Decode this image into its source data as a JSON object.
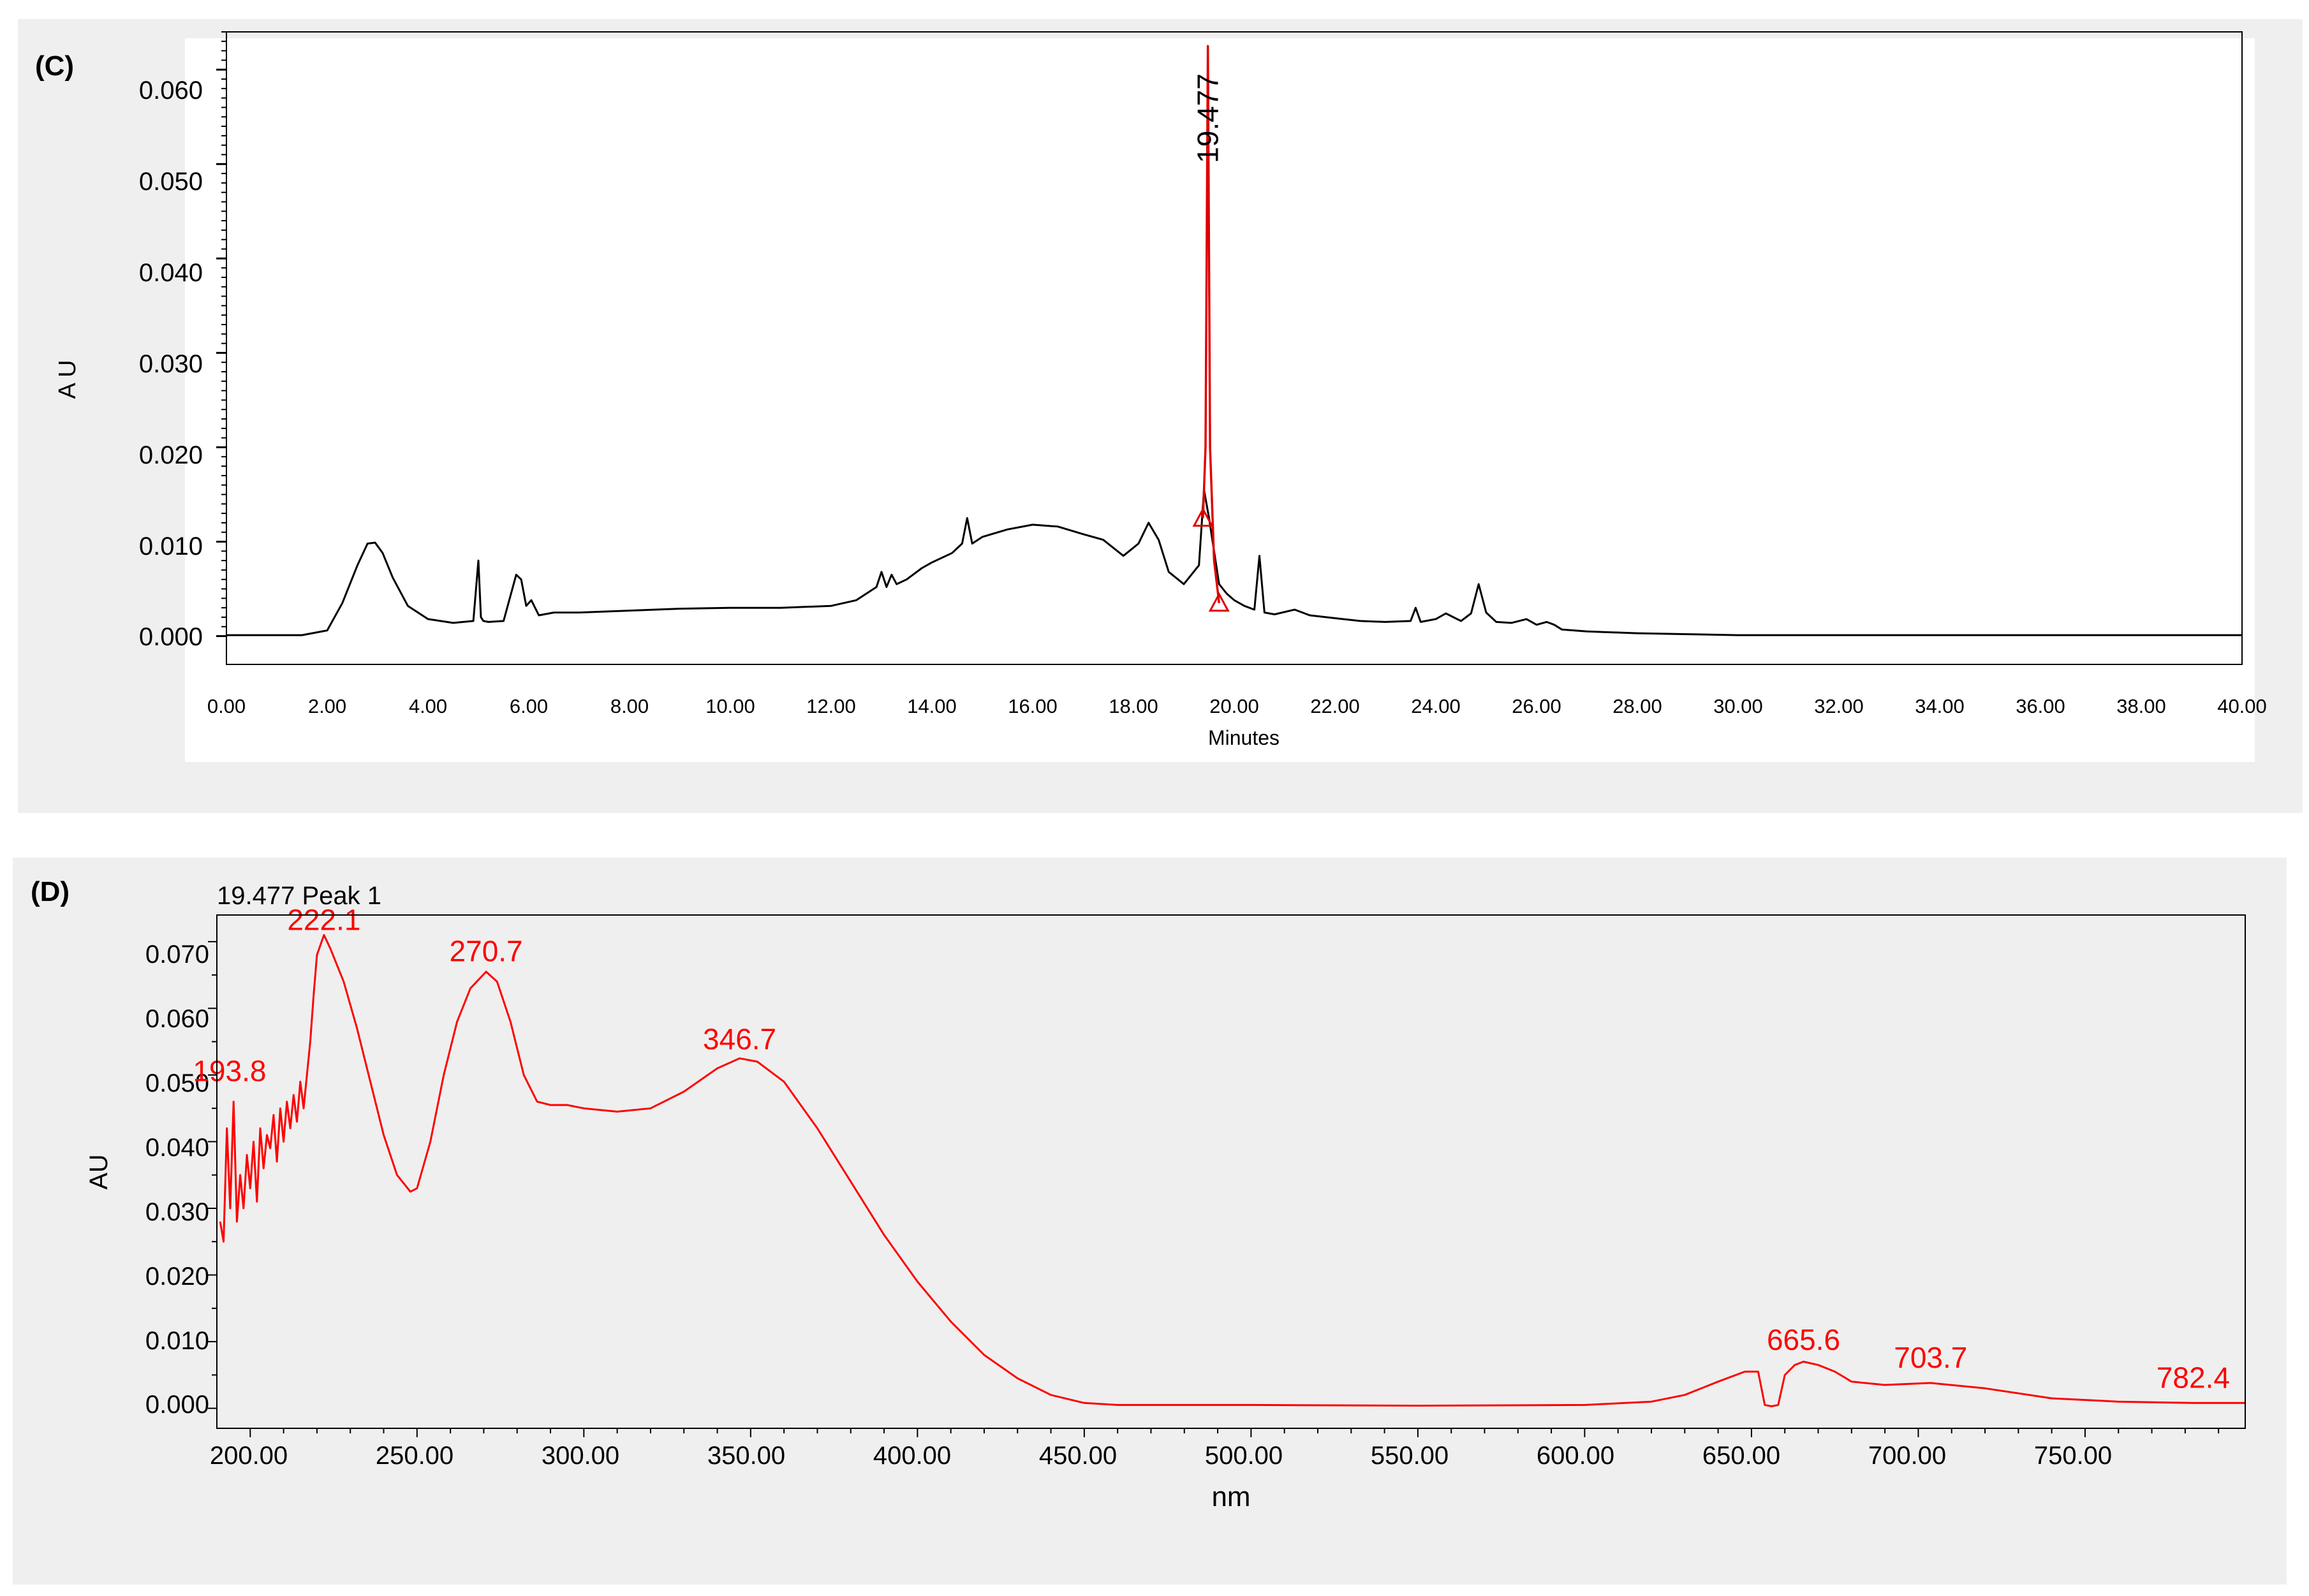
{
  "panels": [
    {
      "id": "C",
      "panel_label": "(C)",
      "chart_data": {
        "type": "line",
        "title": "",
        "xlabel": "Minutes",
        "ylabel": "A U",
        "xlim": [
          0,
          40
        ],
        "ylim": [
          -0.003,
          0.064
        ],
        "x_ticks": [
          "0.00",
          "2.00",
          "4.00",
          "6.00",
          "8.00",
          "10.00",
          "12.00",
          "14.00",
          "16.00",
          "18.00",
          "20.00",
          "22.00",
          "24.00",
          "26.00",
          "28.00",
          "30.00",
          "32.00",
          "34.00",
          "36.00",
          "38.00",
          "40.00"
        ],
        "y_ticks": [
          "0.000",
          "0.010",
          "0.020",
          "0.030",
          "0.040",
          "0.050",
          "0.060"
        ],
        "grid": false,
        "series": [
          {
            "color": "#000000",
            "x": [
              0,
              1.5,
              2.0,
              2.3,
              2.6,
              2.8,
              2.95,
              3.1,
              3.3,
              3.6,
              4.0,
              4.5,
              4.9,
              5.0,
              5.05,
              5.1,
              5.2,
              5.5,
              5.75,
              5.85,
              5.95,
              6.05,
              6.2,
              6.5,
              7.0,
              8.0,
              9.0,
              10.0,
              11.0,
              12.0,
              12.5,
              12.9,
              13.0,
              13.1,
              13.2,
              13.3,
              13.5,
              13.8,
              14.0,
              14.4,
              14.6,
              14.7,
              14.8,
              15.0,
              15.5,
              16.0,
              16.5,
              17.0,
              17.4,
              17.8,
              18.1,
              18.3,
              18.5,
              18.7,
              19.0,
              19.3,
              19.4,
              19.5,
              19.7,
              19.85,
              20.0,
              20.2,
              20.4,
              20.5,
              20.6,
              20.8,
              21.2,
              21.5,
              22.0,
              22.5,
              23.0,
              23.5,
              23.6,
              23.7,
              24.0,
              24.2,
              24.5,
              24.7,
              24.85,
              25.0,
              25.2,
              25.5,
              25.8,
              26.0,
              26.2,
              26.35,
              26.5,
              27.0,
              27.5,
              28.0,
              29.0,
              30.0,
              32.0,
              35.0,
              40.0
            ],
            "y": [
              0.0001,
              0.0001,
              0.0006,
              0.0035,
              0.0075,
              0.0098,
              0.0099,
              0.0088,
              0.0062,
              0.0032,
              0.0018,
              0.0014,
              0.0016,
              0.008,
              0.002,
              0.0016,
              0.0015,
              0.0016,
              0.0065,
              0.006,
              0.0032,
              0.0038,
              0.0022,
              0.0025,
              0.0025,
              0.0027,
              0.0029,
              0.003,
              0.003,
              0.0032,
              0.0038,
              0.0052,
              0.0068,
              0.0052,
              0.0065,
              0.0055,
              0.006,
              0.0072,
              0.0078,
              0.0088,
              0.0098,
              0.0125,
              0.0098,
              0.0105,
              0.0113,
              0.0118,
              0.0116,
              0.0108,
              0.0102,
              0.0085,
              0.0098,
              0.012,
              0.0102,
              0.0068,
              0.0055,
              0.0075,
              0.0155,
              0.0125,
              0.0055,
              0.0045,
              0.0038,
              0.0032,
              0.0028,
              0.0085,
              0.0025,
              0.0023,
              0.0028,
              0.0022,
              0.0019,
              0.0016,
              0.0015,
              0.0016,
              0.003,
              0.0015,
              0.0018,
              0.0024,
              0.0016,
              0.0024,
              0.0055,
              0.0025,
              0.0015,
              0.0014,
              0.0018,
              0.0012,
              0.0015,
              0.0012,
              0.0007,
              0.0005,
              0.0004,
              0.0003,
              0.0002,
              0.0001,
              0.0001,
              0.0001,
              0.0001
            ]
          },
          {
            "color": "#e00000",
            "x": [
              19.38,
              19.43,
              19.477,
              19.52,
              19.6,
              19.7
            ],
            "y": [
              0.0125,
              0.02,
              0.0625,
              0.02,
              0.008,
              0.0035
            ]
          }
        ],
        "annotations": [
          {
            "text": "19.477",
            "x": 19.477,
            "y": 0.0555,
            "color": "#000000",
            "rotation": -90
          }
        ]
      }
    },
    {
      "id": "D",
      "panel_label": "(D)",
      "chart_data": {
        "type": "line",
        "title": "19.477 Peak 1",
        "xlabel": "nm",
        "ylabel": "AU",
        "xlim": [
          190,
          798
        ],
        "ylim": [
          -0.003,
          0.074
        ],
        "x_ticks": [
          "200.00",
          "250.00",
          "300.00",
          "350.00",
          "400.00",
          "450.00",
          "500.00",
          "550.00",
          "600.00",
          "650.00",
          "700.00",
          "750.00"
        ],
        "y_ticks": [
          "0.000",
          "0.010",
          "0.020",
          "0.030",
          "0.040",
          "0.050",
          "0.060",
          "0.070"
        ],
        "grid": false,
        "series": [
          {
            "color": "#ff0000",
            "x": [
              191,
              192,
              193,
              194,
              195,
              196,
              197,
              198,
              199,
              200,
              201,
              202,
              203,
              204,
              205,
              206,
              207,
              208,
              209,
              210,
              211,
              212,
              213,
              214,
              215,
              216,
              217,
              218,
              219,
              220,
              222.1,
              224,
              228,
              232,
              236,
              240,
              244,
              248,
              250,
              254,
              258,
              262,
              266,
              270.7,
              274,
              278,
              282,
              286,
              290,
              295,
              300,
              310,
              320,
              330,
              340,
              346.7,
              352,
              360,
              370,
              380,
              390,
              400,
              410,
              420,
              430,
              440,
              450,
              460,
              480,
              500,
              550,
              600,
              620,
              630,
              640,
              648,
              652,
              654,
              656,
              658,
              660,
              663,
              665.6,
              670,
              675,
              680,
              690,
              703.7,
              720,
              740,
              760,
              782.4,
              798
            ],
            "y": [
              0.028,
              0.025,
              0.042,
              0.03,
              0.046,
              0.028,
              0.035,
              0.03,
              0.038,
              0.033,
              0.04,
              0.031,
              0.042,
              0.036,
              0.041,
              0.039,
              0.044,
              0.037,
              0.045,
              0.04,
              0.046,
              0.042,
              0.047,
              0.043,
              0.049,
              0.045,
              0.05,
              0.055,
              0.062,
              0.068,
              0.071,
              0.069,
              0.064,
              0.057,
              0.049,
              0.041,
              0.035,
              0.0325,
              0.033,
              0.04,
              0.05,
              0.058,
              0.063,
              0.0655,
              0.064,
              0.058,
              0.05,
              0.046,
              0.0455,
              0.0455,
              0.045,
              0.0445,
              0.045,
              0.0475,
              0.051,
              0.0525,
              0.052,
              0.049,
              0.042,
              0.034,
              0.026,
              0.019,
              0.013,
              0.008,
              0.0045,
              0.002,
              0.0008,
              0.0005,
              0.0005,
              0.0005,
              0.0004,
              0.0005,
              0.001,
              0.002,
              0.004,
              0.0055,
              0.0055,
              0.0005,
              0.0003,
              0.0005,
              0.005,
              0.0065,
              0.007,
              0.0065,
              0.0055,
              0.004,
              0.0035,
              0.0038,
              0.003,
              0.0015,
              0.001,
              0.0008,
              0.0008
            ]
          }
        ],
        "annotations": [
          {
            "text": "193.8",
            "x": 193.8,
            "y": 0.0485,
            "color": "#ff0000"
          },
          {
            "text": "222.1",
            "x": 222.1,
            "y": 0.0712,
            "color": "#ff0000"
          },
          {
            "text": "270.7",
            "x": 270.7,
            "y": 0.0665,
            "color": "#ff0000"
          },
          {
            "text": "346.7",
            "x": 346.7,
            "y": 0.0533,
            "color": "#ff0000"
          },
          {
            "text": "665.6",
            "x": 665.6,
            "y": 0.0082,
            "color": "#ff0000"
          },
          {
            "text": "703.7",
            "x": 703.7,
            "y": 0.0055,
            "color": "#ff0000"
          },
          {
            "text": "782.4",
            "x": 782.4,
            "y": 0.0025,
            "color": "#ff0000"
          }
        ]
      }
    }
  ]
}
